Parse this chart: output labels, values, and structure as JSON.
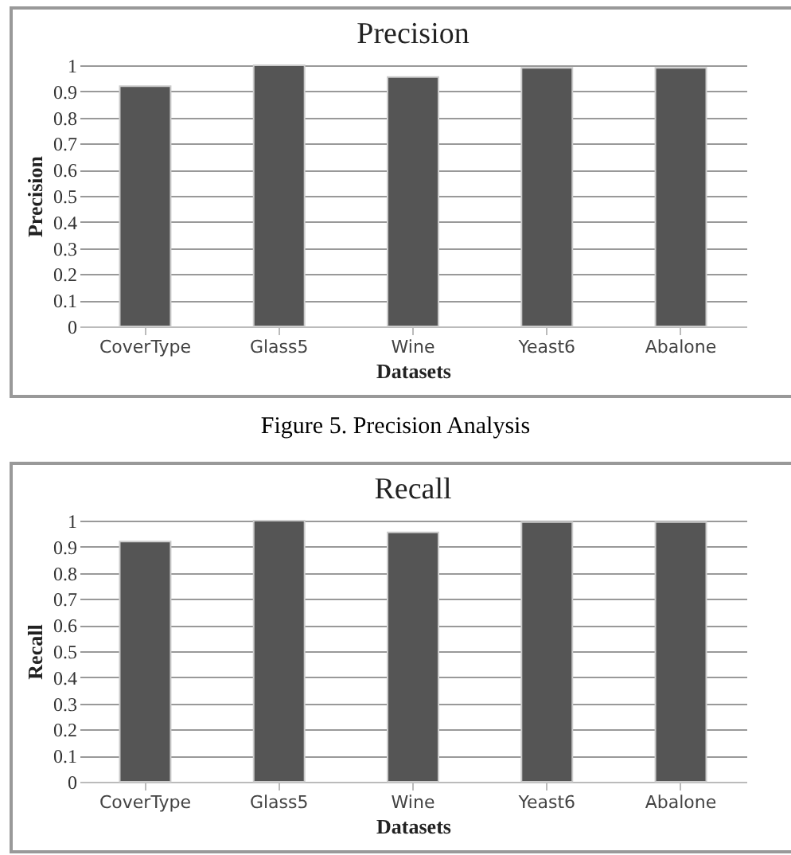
{
  "chart_data": [
    {
      "type": "bar",
      "title": "Precision",
      "xlabel": "Datasets",
      "ylabel": "Precision",
      "categories": [
        "CoverType",
        "Glass5",
        "Wine",
        "Yeast6",
        "Abalone"
      ],
      "values": [
        0.92,
        1.0,
        0.955,
        0.99,
        0.99
      ],
      "color": "#555555",
      "ylim": [
        0,
        1
      ],
      "yticks": [
        0,
        0.1,
        0.2,
        0.3,
        0.4,
        0.5,
        0.6,
        0.7,
        0.8,
        0.9,
        1
      ],
      "grid": "y",
      "annotations": [
        "Figure 5.  Precision Analysis"
      ]
    },
    {
      "type": "bar",
      "title": "Recall",
      "xlabel": "Datasets",
      "ylabel": "Recall",
      "categories": [
        "CoverType",
        "Glass5",
        "Wine",
        "Yeast6",
        "Abalone"
      ],
      "values": [
        0.92,
        1.0,
        0.955,
        0.995,
        0.995
      ],
      "color": "#555555",
      "ylim": [
        0,
        1
      ],
      "yticks": [
        0,
        0.1,
        0.2,
        0.3,
        0.4,
        0.5,
        0.6,
        0.7,
        0.8,
        0.9,
        1
      ],
      "grid": "y"
    }
  ]
}
